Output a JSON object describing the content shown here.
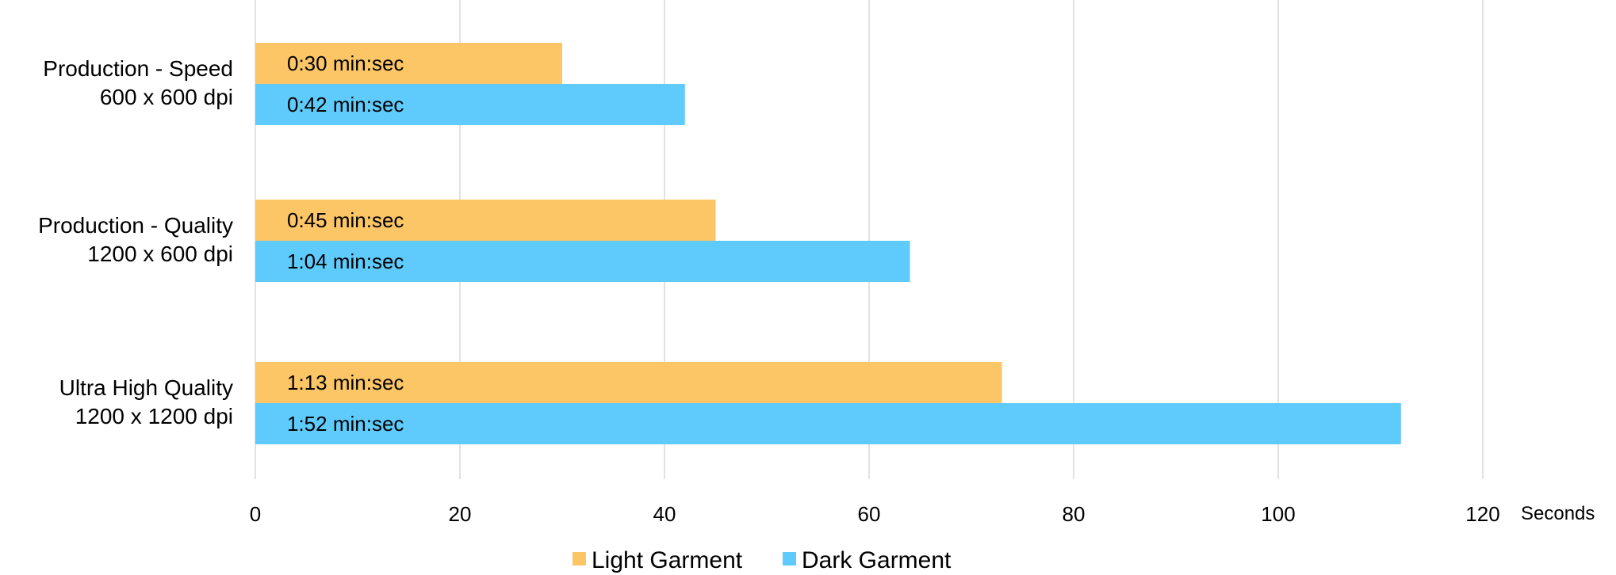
{
  "chart_data": {
    "type": "bar",
    "orientation": "horizontal",
    "categories": [
      [
        "Production - Speed",
        "600 x 600 dpi"
      ],
      [
        "Production - Quality",
        "1200 x 600 dpi"
      ],
      [
        "Ultra High Quality",
        "1200 x 1200 dpi"
      ]
    ],
    "series": [
      {
        "name": "Light Garment",
        "color": "#FCC666",
        "values": [
          30,
          45,
          73
        ],
        "labels": [
          "0:30 min:sec",
          "0:45 min:sec",
          "1:13 min:sec"
        ]
      },
      {
        "name": "Dark Garment",
        "color": "#5FCBFD",
        "values": [
          42,
          64,
          112
        ],
        "labels": [
          "0:42 min:sec",
          "1:04 min:sec",
          "1:52 min:sec"
        ]
      }
    ],
    "xlim": [
      0,
      120
    ],
    "xticks": [
      0,
      20,
      40,
      60,
      80,
      100,
      120
    ],
    "xunit": "Seconds",
    "grid": true,
    "legend_position": "bottom",
    "gridline_color": "#D9D9D9"
  }
}
